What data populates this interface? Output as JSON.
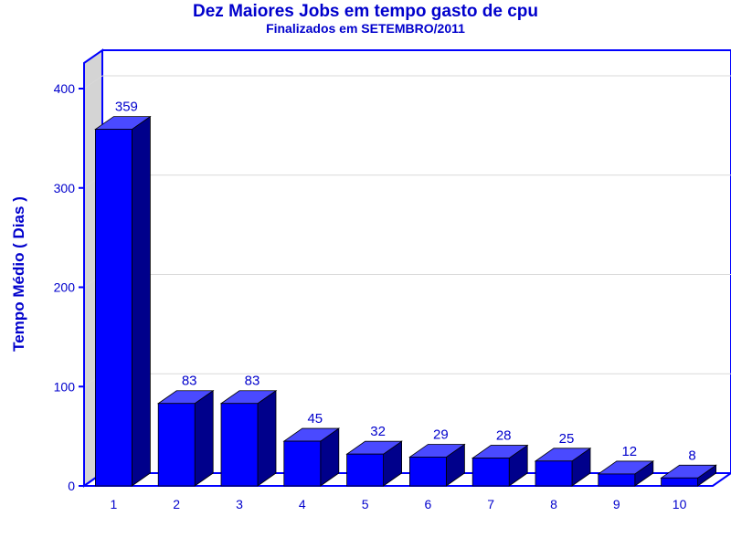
{
  "chart_data": {
    "type": "bar",
    "title": "Dez Maiores Jobs em tempo gasto de cpu",
    "subtitle": "Finalizados em SETEMBRO/2011",
    "xlabel": "",
    "ylabel": "Tempo Médio ( Dias )",
    "categories": [
      "1",
      "2",
      "3",
      "4",
      "5",
      "6",
      "7",
      "8",
      "9",
      "10"
    ],
    "values": [
      359,
      83,
      83,
      45,
      32,
      29,
      28,
      25,
      12,
      8
    ],
    "data_labels": [
      "359",
      "83",
      "83",
      "45",
      "32",
      "29",
      "28",
      "25",
      "12",
      "8"
    ],
    "yticks": [
      0,
      100,
      200,
      300,
      400
    ],
    "ylim": [
      0,
      400
    ],
    "grid": true,
    "style": "3d",
    "colors": {
      "bar_front": "#0000ff",
      "bar_top": "#4a4aff",
      "bar_side": "#00008b",
      "axis": "#0000ff",
      "text": "#0000cc",
      "wall": "#d4d4d4",
      "grid": "#d9d9d9"
    }
  }
}
